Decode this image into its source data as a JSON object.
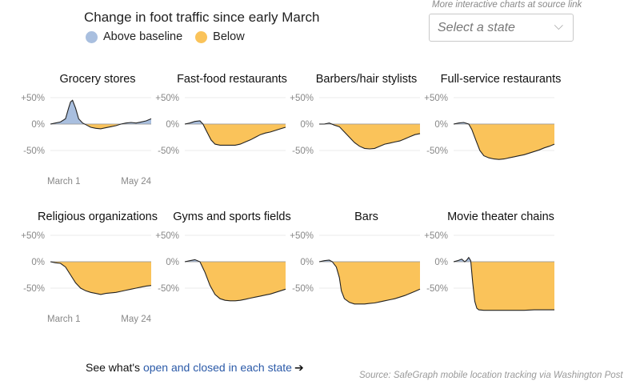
{
  "header": {
    "title": "Change in foot traffic since early March",
    "legend": [
      {
        "label": "Above baseline",
        "color": "#a9bfdf"
      },
      {
        "label": "Below",
        "color": "#fac35a"
      }
    ],
    "more_note": "More interactive charts at source link",
    "select_placeholder": "Select a state",
    "select_icon": "chevron-down-icon"
  },
  "footer": {
    "prefix": "See what's ",
    "link_text": "open and closed in each state",
    "arrow": "➔",
    "source": "Source: SafeGraph mobile location tracking via Washington Post"
  },
  "colors": {
    "above": "#a9bfdf",
    "below": "#fac35a",
    "line": "#222222",
    "axis": "#d0d0d0"
  },
  "chart_data": [
    {
      "type": "area",
      "title": "Grocery stores",
      "xlabels": [
        "March 1",
        "May 24"
      ],
      "yticks": [
        "+50%",
        "0%",
        "-50%"
      ],
      "ylim": [
        -60,
        60
      ],
      "x": [
        0,
        0.05,
        0.1,
        0.15,
        0.18,
        0.2,
        0.22,
        0.25,
        0.28,
        0.32,
        0.36,
        0.4,
        0.45,
        0.5,
        0.55,
        0.6,
        0.65,
        0.7,
        0.75,
        0.8,
        0.85,
        0.9,
        0.95,
        1.0
      ],
      "values": [
        0,
        2,
        4,
        10,
        30,
        42,
        45,
        30,
        10,
        2,
        -2,
        -6,
        -8,
        -9,
        -7,
        -5,
        -3,
        0,
        2,
        3,
        2,
        4,
        6,
        10
      ]
    },
    {
      "type": "area",
      "title": "Fast-food restaurants",
      "yticks": [
        "+50%",
        "0%",
        "-50%"
      ],
      "ylim": [
        -60,
        60
      ],
      "x": [
        0,
        0.05,
        0.1,
        0.15,
        0.18,
        0.22,
        0.26,
        0.3,
        0.35,
        0.4,
        0.45,
        0.5,
        0.55,
        0.6,
        0.65,
        0.7,
        0.75,
        0.8,
        0.85,
        0.9,
        0.95,
        1.0
      ],
      "values": [
        0,
        2,
        5,
        6,
        0,
        -15,
        -30,
        -38,
        -40,
        -40,
        -40,
        -40,
        -38,
        -34,
        -30,
        -25,
        -20,
        -17,
        -15,
        -12,
        -9,
        -6
      ]
    },
    {
      "type": "area",
      "title": "Barbers/hair stylists",
      "yticks": [
        "+50%",
        "0%",
        "-50%"
      ],
      "ylim": [
        -60,
        60
      ],
      "x": [
        0,
        0.05,
        0.1,
        0.15,
        0.2,
        0.25,
        0.3,
        0.35,
        0.4,
        0.45,
        0.5,
        0.55,
        0.6,
        0.65,
        0.7,
        0.75,
        0.8,
        0.85,
        0.9,
        0.95,
        1.0
      ],
      "values": [
        0,
        0,
        2,
        -2,
        -5,
        -15,
        -25,
        -35,
        -42,
        -46,
        -47,
        -46,
        -42,
        -38,
        -36,
        -34,
        -32,
        -28,
        -24,
        -20,
        -18
      ]
    },
    {
      "type": "area",
      "title": "Full-service restaurants",
      "yticks": [
        "+50%",
        "0%",
        "-50%"
      ],
      "ylim": [
        -70,
        60
      ],
      "x": [
        0,
        0.05,
        0.1,
        0.15,
        0.18,
        0.22,
        0.26,
        0.3,
        0.35,
        0.4,
        0.45,
        0.5,
        0.55,
        0.6,
        0.65,
        0.7,
        0.75,
        0.8,
        0.85,
        0.9,
        0.95,
        1.0
      ],
      "values": [
        0,
        2,
        3,
        0,
        -10,
        -30,
        -50,
        -60,
        -64,
        -66,
        -67,
        -66,
        -64,
        -62,
        -60,
        -58,
        -55,
        -52,
        -49,
        -45,
        -42,
        -38
      ]
    },
    {
      "type": "area",
      "title": "Religious organizations",
      "xlabels": [
        "March 1",
        "May 24"
      ],
      "yticks": [
        "+50%",
        "0%",
        "-50%"
      ],
      "ylim": [
        -70,
        60
      ],
      "x": [
        0,
        0.05,
        0.1,
        0.15,
        0.2,
        0.25,
        0.3,
        0.35,
        0.4,
        0.45,
        0.5,
        0.55,
        0.6,
        0.65,
        0.7,
        0.75,
        0.8,
        0.85,
        0.9,
        0.95,
        1.0
      ],
      "values": [
        0,
        -2,
        -3,
        -10,
        -25,
        -40,
        -50,
        -55,
        -58,
        -60,
        -62,
        -60,
        -59,
        -58,
        -56,
        -54,
        -52,
        -50,
        -48,
        -46,
        -45
      ]
    },
    {
      "type": "area",
      "title": "Gyms and sports fields",
      "yticks": [
        "+50%",
        "0%",
        "-50%"
      ],
      "ylim": [
        -80,
        60
      ],
      "x": [
        0,
        0.05,
        0.1,
        0.15,
        0.2,
        0.25,
        0.3,
        0.35,
        0.4,
        0.45,
        0.5,
        0.55,
        0.6,
        0.65,
        0.7,
        0.75,
        0.8,
        0.85,
        0.9,
        0.95,
        1.0
      ],
      "values": [
        0,
        2,
        4,
        0,
        -20,
        -45,
        -62,
        -70,
        -73,
        -74,
        -74,
        -73,
        -71,
        -69,
        -67,
        -65,
        -63,
        -61,
        -58,
        -55,
        -52
      ]
    },
    {
      "type": "area",
      "title": "Bars",
      "yticks": [
        "+50%",
        "0%",
        "-50%"
      ],
      "ylim": [
        -90,
        60
      ],
      "x": [
        0,
        0.05,
        0.1,
        0.13,
        0.17,
        0.2,
        0.22,
        0.25,
        0.3,
        0.35,
        0.4,
        0.45,
        0.5,
        0.55,
        0.6,
        0.65,
        0.7,
        0.75,
        0.8,
        0.85,
        0.9,
        0.95,
        1.0
      ],
      "values": [
        0,
        2,
        3,
        0,
        -10,
        -30,
        -55,
        -70,
        -77,
        -80,
        -80,
        -80,
        -79,
        -78,
        -76,
        -74,
        -72,
        -70,
        -67,
        -64,
        -60,
        -56,
        -52
      ]
    },
    {
      "type": "area",
      "title": "Movie theater chains",
      "yticks": [
        "+50%",
        "0%",
        "-50%"
      ],
      "ylim": [
        -100,
        60
      ],
      "x": [
        0,
        0.04,
        0.08,
        0.11,
        0.13,
        0.15,
        0.17,
        0.19,
        0.21,
        0.23,
        0.25,
        0.3,
        0.4,
        0.5,
        0.6,
        0.7,
        0.8,
        0.9,
        1.0
      ],
      "values": [
        0,
        2,
        5,
        0,
        3,
        8,
        2,
        -40,
        -75,
        -88,
        -91,
        -92,
        -92,
        -92,
        -92,
        -92,
        -91,
        -91,
        -91
      ]
    }
  ]
}
